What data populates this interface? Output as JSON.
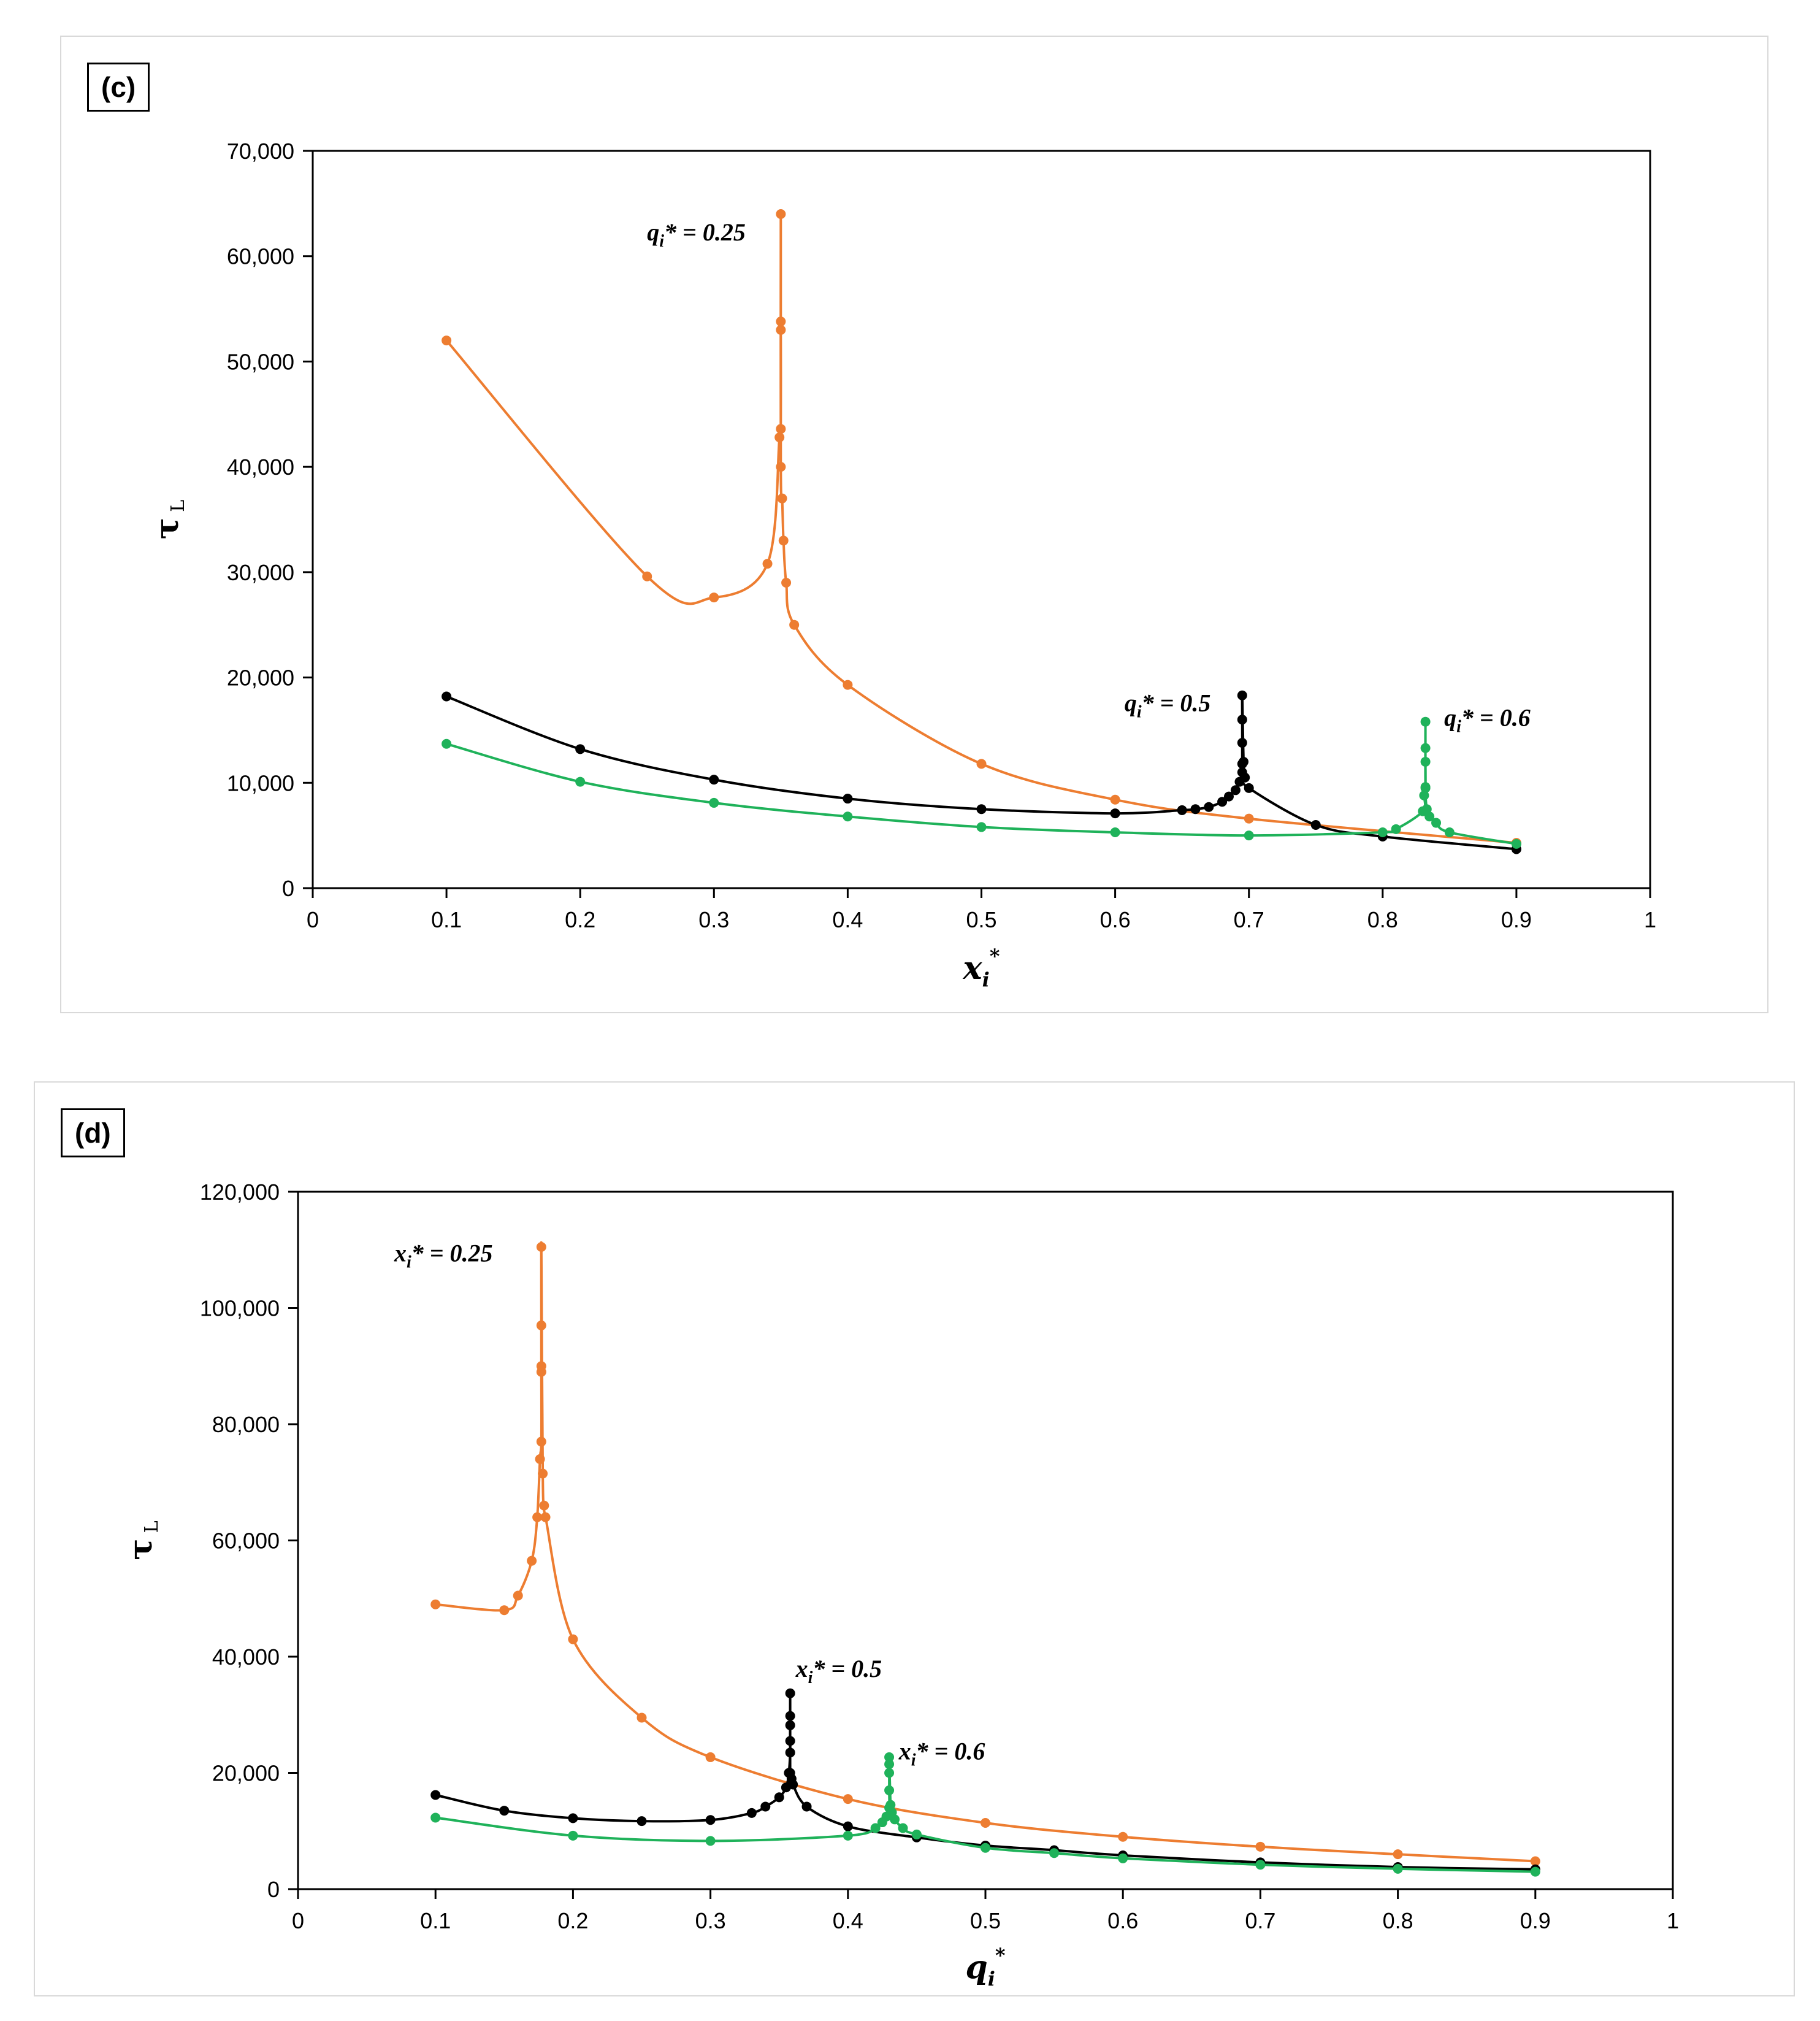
{
  "chart_data": [
    {
      "type": "line",
      "panel_label": "(c)",
      "xlabel": "x",
      "xlabel_sub": "i",
      "xlabel_sup": "*",
      "ylabel": "τ",
      "ylabel_sub": "L",
      "xlim": [
        0,
        1
      ],
      "ylim": [
        0,
        70000
      ],
      "xticks": [
        0,
        0.1,
        0.2,
        0.3,
        0.4,
        0.5,
        0.6,
        0.7,
        0.8,
        0.9,
        1
      ],
      "xtick_labels": [
        "0",
        "0.1",
        "0.2",
        "0.3",
        "0.4",
        "0.5",
        "0.6",
        "0.7",
        "0.8",
        "0.9",
        "1"
      ],
      "yticks": [
        0,
        10000,
        20000,
        30000,
        40000,
        50000,
        60000,
        70000
      ],
      "ytick_labels": [
        "0",
        "10,000",
        "20,000",
        "30,000",
        "40,000",
        "50,000",
        "60,000",
        "70,000"
      ],
      "series": [
        {
          "name": "qi*=0.25",
          "color": "#ed7d31",
          "x": [
            0.1,
            0.25,
            0.3,
            0.34,
            0.349,
            0.35,
            0.35,
            0.35,
            0.35,
            0.35,
            0.351,
            0.352,
            0.354,
            0.36,
            0.4,
            0.5,
            0.6,
            0.7,
            0.9
          ],
          "y": [
            52000,
            29600,
            27600,
            30800,
            42800,
            43600,
            53000,
            53800,
            64000,
            40000,
            37000,
            33000,
            29000,
            25000,
            19300,
            11800,
            8400,
            6600,
            4300
          ]
        },
        {
          "name": "qi*=0.5",
          "color": "#000000",
          "x": [
            0.1,
            0.2,
            0.3,
            0.4,
            0.5,
            0.6,
            0.65,
            0.66,
            0.67,
            0.68,
            0.685,
            0.69,
            0.693,
            0.695,
            0.695,
            0.695,
            0.695,
            0.695,
            0.696,
            0.697,
            0.7,
            0.75,
            0.8,
            0.9
          ],
          "y": [
            18200,
            13200,
            10300,
            8500,
            7500,
            7100,
            7400,
            7500,
            7700,
            8200,
            8700,
            9300,
            10100,
            11000,
            11800,
            13800,
            16000,
            18300,
            12000,
            10500,
            9500,
            6000,
            4900,
            3700
          ]
        },
        {
          "name": "qi*=0.6",
          "color": "#1fb25a",
          "x": [
            0.1,
            0.2,
            0.3,
            0.4,
            0.5,
            0.6,
            0.7,
            0.8,
            0.81,
            0.83,
            0.831,
            0.832,
            0.832,
            0.832,
            0.832,
            0.832,
            0.833,
            0.835,
            0.84,
            0.85,
            0.9
          ],
          "y": [
            13700,
            10100,
            8100,
            6800,
            5800,
            5300,
            5000,
            5300,
            5600,
            7300,
            8800,
            9600,
            12000,
            13300,
            15800,
            9500,
            7500,
            6800,
            6200,
            5300,
            4200
          ]
        }
      ],
      "annotations": [
        {
          "base": "q",
          "sub": "i",
          "rest": "* = 0.25",
          "x": 0.25,
          "y": 61500
        },
        {
          "base": "q",
          "sub": "i",
          "rest": "* = 0.5",
          "x": 0.607,
          "y": 16800
        },
        {
          "base": "q",
          "sub": "i",
          "rest": "* = 0.6",
          "x": 0.846,
          "y": 15400
        }
      ]
    },
    {
      "type": "line",
      "panel_label": "(d)",
      "xlabel": "q",
      "xlabel_sub": "i",
      "xlabel_sup": "*",
      "ylabel": "τ",
      "ylabel_sub": "L",
      "xlim": [
        0,
        1
      ],
      "ylim": [
        0,
        120000
      ],
      "xticks": [
        0,
        0.1,
        0.2,
        0.3,
        0.4,
        0.5,
        0.6,
        0.7,
        0.8,
        0.9,
        1
      ],
      "xtick_labels": [
        "0",
        "0.1",
        "0.2",
        "0.3",
        "0.4",
        "0.5",
        "0.6",
        "0.7",
        "0.8",
        "0.9",
        "1"
      ],
      "yticks": [
        0,
        20000,
        40000,
        60000,
        80000,
        100000,
        120000
      ],
      "ytick_labels": [
        "0",
        "20,000",
        "40,000",
        "60,000",
        "80,000",
        "100,000",
        "120,000"
      ],
      "series": [
        {
          "name": "xi*=0.25",
          "color": "#ed7d31",
          "x": [
            0.1,
            0.15,
            0.16,
            0.17,
            0.174,
            0.176,
            0.177,
            0.177,
            0.177,
            0.177,
            0.177,
            0.178,
            0.179,
            0.18,
            0.2,
            0.25,
            0.3,
            0.4,
            0.5,
            0.6,
            0.7,
            0.8,
            0.9
          ],
          "y": [
            49000,
            48000,
            50500,
            56500,
            64000,
            74000,
            77000,
            89000,
            90000,
            97000,
            110500,
            71500,
            66000,
            64000,
            43000,
            29500,
            22700,
            15500,
            11400,
            9000,
            7300,
            6000,
            4800
          ]
        },
        {
          "name": "xi*=0.5",
          "color": "#000000",
          "x": [
            0.1,
            0.15,
            0.2,
            0.25,
            0.3,
            0.33,
            0.34,
            0.35,
            0.355,
            0.357,
            0.358,
            0.358,
            0.358,
            0.358,
            0.358,
            0.358,
            0.359,
            0.36,
            0.37,
            0.4,
            0.45,
            0.5,
            0.55,
            0.6,
            0.7,
            0.8,
            0.9
          ],
          "y": [
            16200,
            13500,
            12200,
            11700,
            11900,
            13100,
            14200,
            15800,
            17500,
            20000,
            23500,
            25500,
            28200,
            29800,
            33700,
            20000,
            19000,
            18000,
            14200,
            10800,
            8900,
            7500,
            6700,
            5800,
            4600,
            3800,
            3400
          ]
        },
        {
          "name": "xi*=0.6",
          "color": "#1fb25a",
          "x": [
            0.1,
            0.2,
            0.3,
            0.4,
            0.42,
            0.425,
            0.428,
            0.43,
            0.43,
            0.43,
            0.43,
            0.43,
            0.431,
            0.432,
            0.434,
            0.44,
            0.45,
            0.5,
            0.55,
            0.6,
            0.7,
            0.8,
            0.9
          ],
          "y": [
            12300,
            9200,
            8300,
            9200,
            10500,
            11500,
            12500,
            14000,
            17000,
            20000,
            21500,
            22700,
            14500,
            13200,
            12000,
            10500,
            9400,
            7100,
            6200,
            5300,
            4200,
            3500,
            3000
          ]
        }
      ],
      "annotations": [
        {
          "base": "x",
          "sub": "i",
          "rest": "* = 0.25",
          "x": 0.07,
          "y": 108000
        },
        {
          "base": "x",
          "sub": "i",
          "rest": "* = 0.5",
          "x": 0.362,
          "y": 36500
        },
        {
          "base": "x",
          "sub": "i",
          "rest": "* = 0.6",
          "x": 0.437,
          "y": 22300
        }
      ]
    }
  ]
}
